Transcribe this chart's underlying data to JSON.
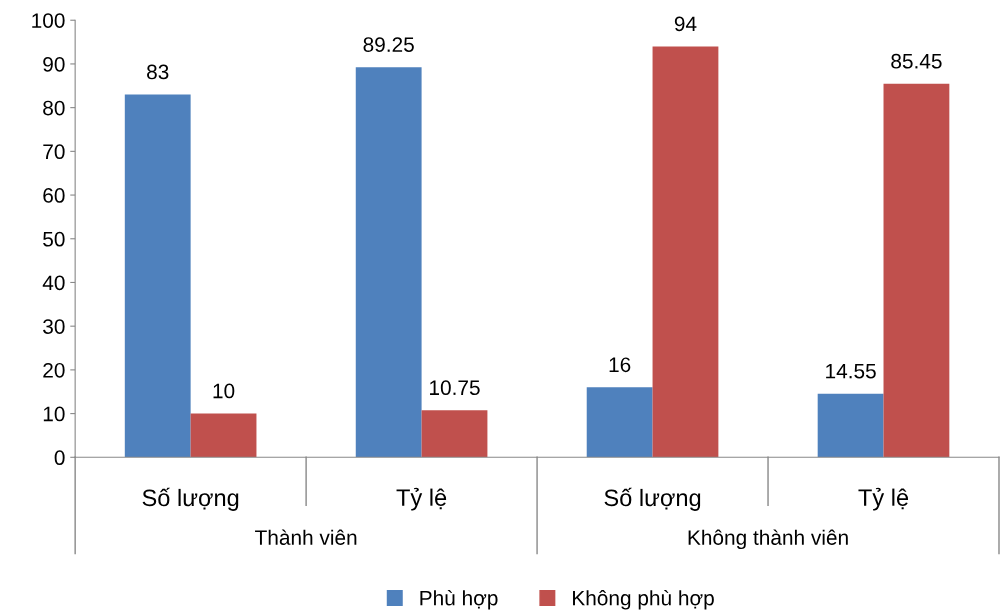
{
  "chart_data": {
    "type": "bar",
    "categories": [
      "Số lượng",
      "Tỷ lệ",
      "Số lượng",
      "Tỷ lệ"
    ],
    "series": [
      {
        "name": "Phù hợp",
        "color": "#4f81bd",
        "values": [
          83,
          89.25,
          16,
          14.55
        ]
      },
      {
        "name": "Không phù hợp",
        "color": "#c0504d",
        "values": [
          10,
          10.75,
          94,
          85.45
        ]
      }
    ],
    "annotations": [
      "Thành viên",
      "Không thành viên"
    ],
    "ylim": [
      0,
      100
    ],
    "yticks": [
      0,
      10,
      20,
      30,
      40,
      50,
      60,
      70,
      80,
      90,
      100
    ],
    "data_labels": true,
    "grid": false,
    "legend": "bottom"
  }
}
